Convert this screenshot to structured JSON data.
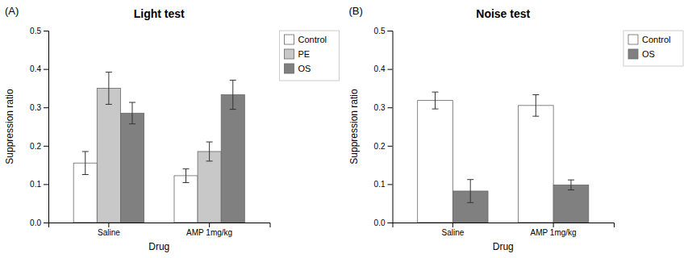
{
  "chart_data": [
    {
      "type": "bar",
      "title": "Light test",
      "annotations": [
        "(A)"
      ],
      "xlabel": "Drug",
      "ylabel": "Suppression ratio",
      "categories": [
        "Saline",
        "AMP 1mg/kg"
      ],
      "series": [
        {
          "name": "Control",
          "color": "#ffffff",
          "values": [
            0.155,
            0.122
          ],
          "errors": [
            0.03,
            0.018
          ]
        },
        {
          "name": "PE",
          "color": "#c8c8c8",
          "values": [
            0.35,
            0.185
          ],
          "errors": [
            0.042,
            0.025
          ]
        },
        {
          "name": "OS",
          "color": "#808080",
          "values": [
            0.285,
            0.333
          ],
          "errors": [
            0.028,
            0.038
          ]
        }
      ],
      "ylim": [
        0,
        0.5
      ],
      "yticks": [
        {
          "value": 0,
          "label": "0.0"
        },
        0.1,
        0.2,
        0.3,
        0.4,
        0.5
      ],
      "grid": false,
      "legend": "upper right"
    },
    {
      "type": "bar",
      "title": "Noise test",
      "annotations": [
        "(B)"
      ],
      "xlabel": "Drug",
      "ylabel": "Suppression ratio",
      "categories": [
        "Saline",
        "AMP 1mg/kg"
      ],
      "series": [
        {
          "name": "Control",
          "color": "#ffffff",
          "values": [
            0.318,
            0.305
          ],
          "errors": [
            0.022,
            0.028
          ]
        },
        {
          "name": "OS",
          "color": "#808080",
          "values": [
            0.082,
            0.098
          ],
          "errors": [
            0.03,
            0.013
          ]
        }
      ],
      "ylim": [
        0,
        0.5
      ],
      "yticks": [
        {
          "value": 0,
          "label": "0.0"
        },
        0.1,
        0.2,
        0.3,
        0.4,
        0.5
      ],
      "grid": false,
      "legend": "upper right"
    }
  ]
}
